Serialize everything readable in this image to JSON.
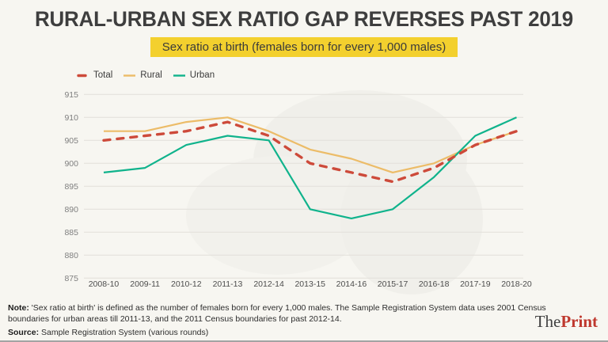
{
  "title": "RURAL-URBAN SEX RATIO GAP REVERSES PAST 2019",
  "subtitle": "Sex ratio at birth (females born for every 1,000 males)",
  "colors": {
    "highlight_yellow": "#f3d02e",
    "total_red": "#cd4a3a",
    "rural_orange": "#ecbc68",
    "urban_teal": "#10b38c",
    "logo_red": "#bf382e",
    "background": "#f7f6f1"
  },
  "chart_data": {
    "type": "line",
    "title": "Sex ratio at birth (females born for every 1,000 males)",
    "xlabel": "",
    "ylabel": "",
    "categories": [
      "2008-10",
      "2009-11",
      "2010-12",
      "2011-13",
      "2012-14",
      "2013-15",
      "2014-16",
      "2015-17",
      "2016-18",
      "2017-19",
      "2018-20"
    ],
    "series": [
      {
        "name": "Total",
        "color": "#cd4a3a",
        "style": "dashed",
        "values": [
          905,
          906,
          907,
          909,
          906,
          900,
          898,
          896,
          899,
          904,
          907
        ]
      },
      {
        "name": "Rural",
        "color": "#ecbc68",
        "style": "solid",
        "values": [
          907,
          907,
          909,
          910,
          907,
          903,
          901,
          898,
          900,
          904,
          907
        ]
      },
      {
        "name": "Urban",
        "color": "#10b38c",
        "style": "solid",
        "values": [
          898,
          899,
          904,
          906,
          905,
          890,
          888,
          890,
          897,
          906,
          910
        ]
      }
    ],
    "ylim": [
      875,
      915
    ],
    "ytick_step": 5,
    "grid": true,
    "legend_position": "top-left"
  },
  "footer": {
    "note_label": "Note:",
    "note_text": "'Sex ratio at birth' is defined as the number of females born for every 1,000 males. The Sample Registration System data uses 2001 Census boundaries for urban areas till 2011-13, and the 2011 Census boundaries for past 2012-14.",
    "source_label": "Source:",
    "source_text": "Sample Registration System (various rounds)"
  },
  "logo": {
    "part1": "The",
    "part2": "Print"
  }
}
